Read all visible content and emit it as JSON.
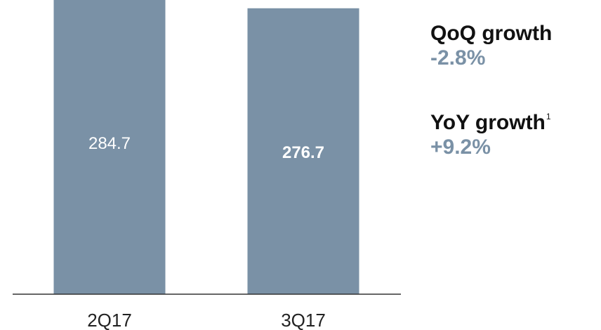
{
  "colors": {
    "bar": "#7a91a6",
    "growth_value": "#7a91a6",
    "baseline": "#333333"
  },
  "stats": {
    "qoq": {
      "label": "QoQ growth",
      "value": "-2.8%"
    },
    "yoy": {
      "label": "YoY growth",
      "footnote": "1",
      "value": "+9.2%"
    }
  },
  "chart_data": {
    "type": "bar",
    "categories": [
      "2Q17",
      "3Q17"
    ],
    "values": [
      284.7,
      276.7
    ],
    "value_labels": [
      "284.7",
      "276.7"
    ],
    "highlighted_label": "276.7",
    "title": "",
    "xlabel": "",
    "ylabel": ""
  }
}
